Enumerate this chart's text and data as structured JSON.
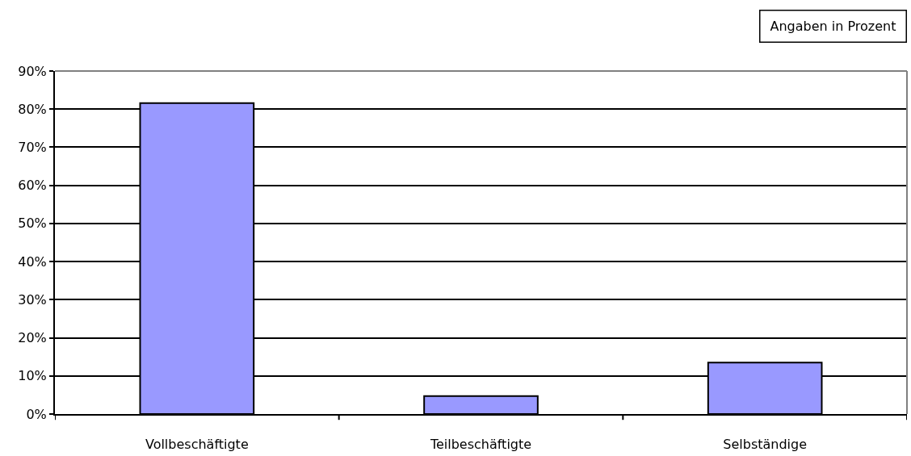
{
  "chart_data": {
    "type": "bar",
    "categories": [
      "Vollbeschäftigte",
      "Teilbeschäftigte",
      "Selbständige"
    ],
    "values": [
      81.6,
      4.7,
      13.5
    ],
    "color": "#9999ff",
    "ylim": [
      0,
      90
    ],
    "yticks": [
      {
        "value": 0,
        "label": "0%"
      },
      {
        "value": 10,
        "label": "10%"
      },
      {
        "value": 20,
        "label": "20%"
      },
      {
        "value": 30,
        "label": "30%"
      },
      {
        "value": 40,
        "label": "40%"
      },
      {
        "value": 50,
        "label": "50%"
      },
      {
        "value": 60,
        "label": "60%"
      },
      {
        "value": 70,
        "label": "70%"
      },
      {
        "value": 80,
        "label": "80%"
      },
      {
        "value": 90,
        "label": "90%"
      }
    ],
    "grid": "y",
    "annotations": [
      "Angaben in Prozent"
    ]
  }
}
